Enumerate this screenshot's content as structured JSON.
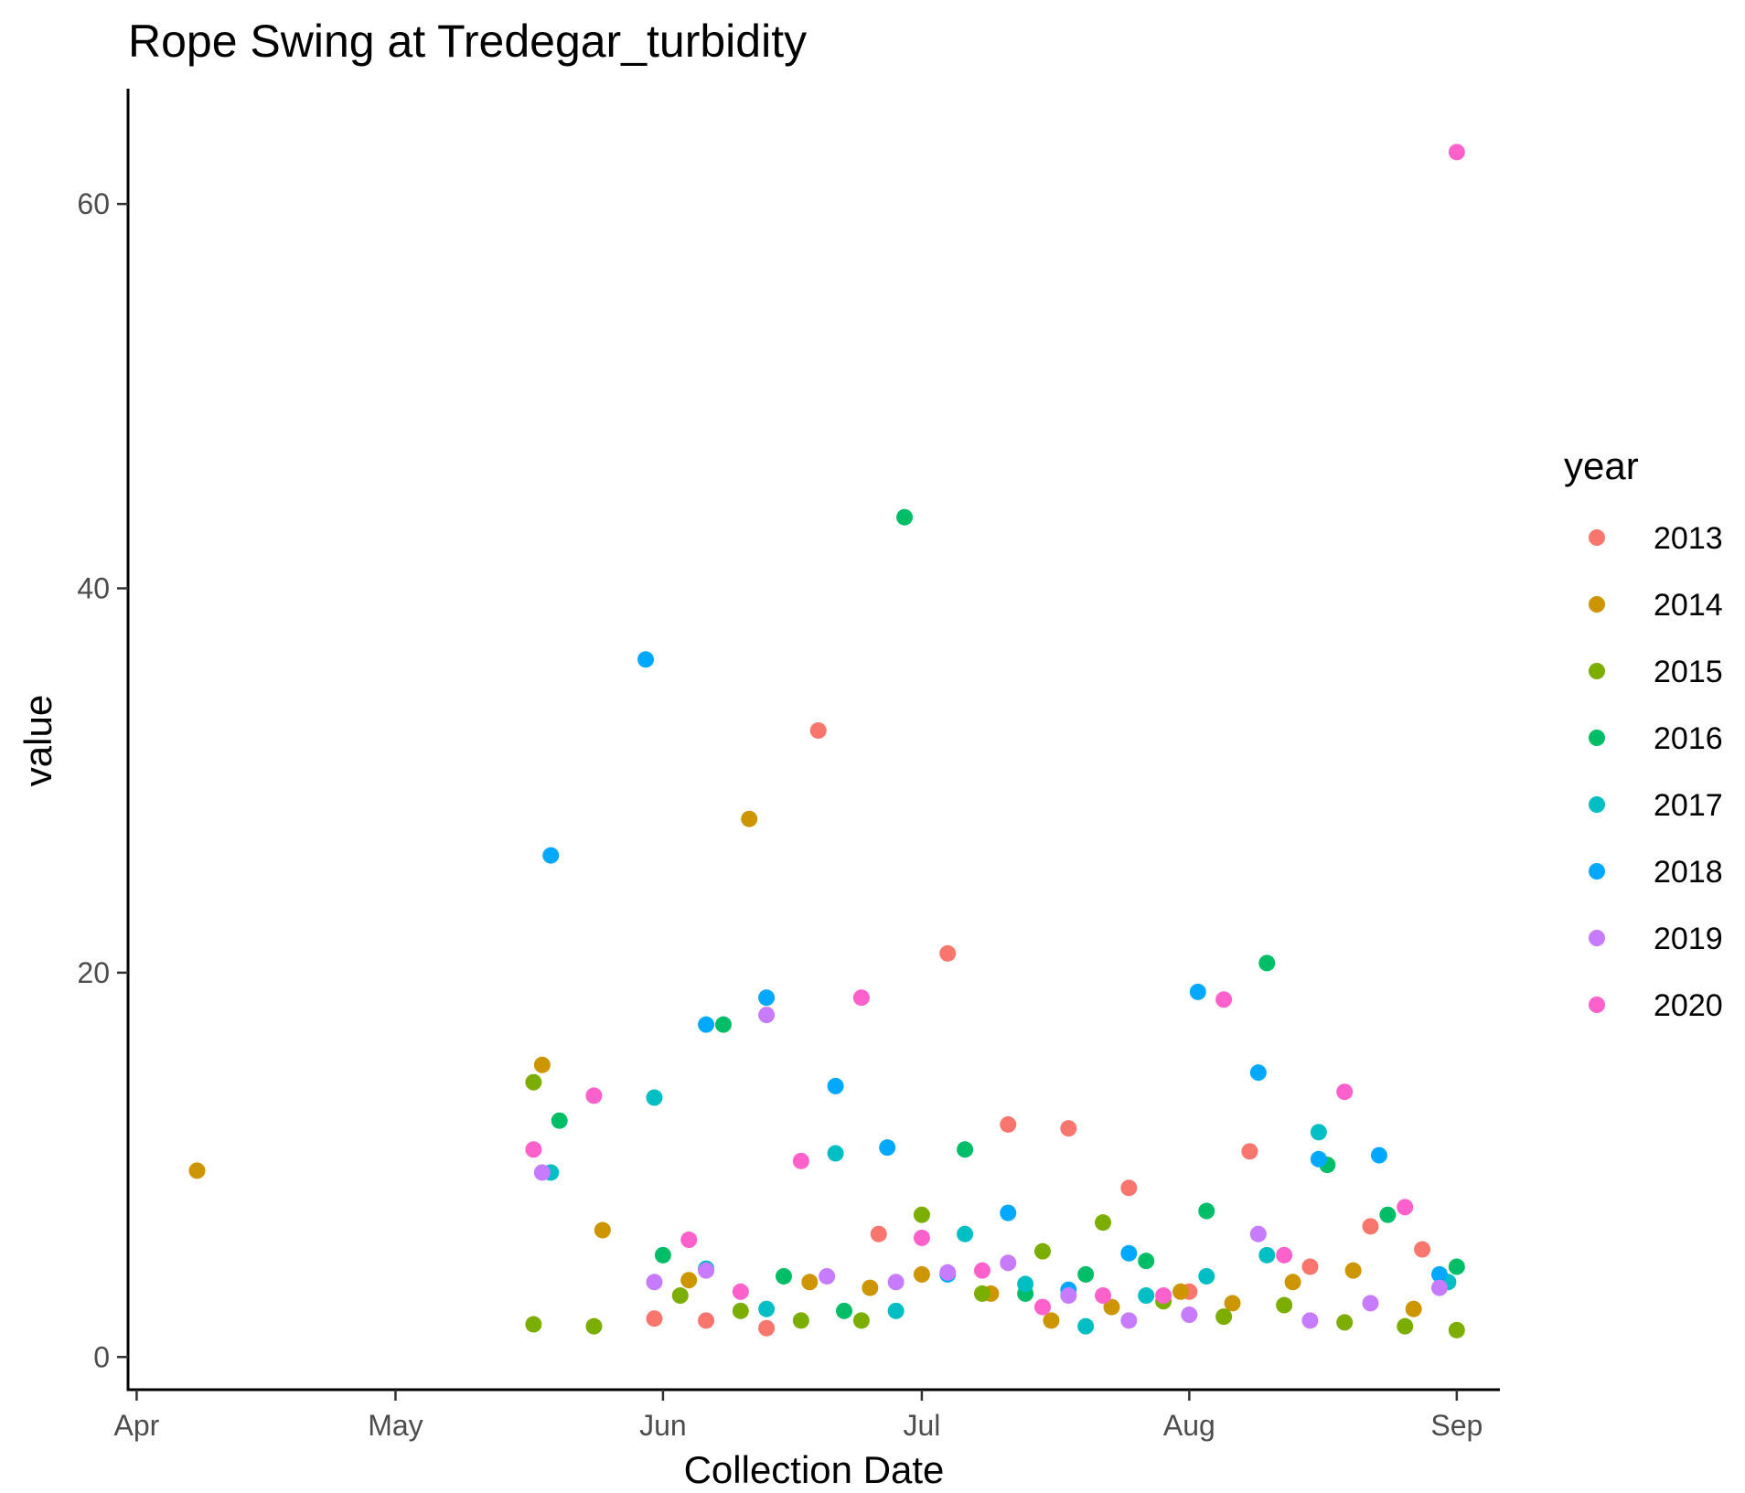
{
  "chart_data": {
    "type": "scatter",
    "title": "Rope Swing at Tredegar_turbidity",
    "xlabel": "Collection Date",
    "ylabel": "value",
    "x_axis_type": "date",
    "xlim": [
      "03-31",
      "09-06"
    ],
    "ylim": [
      -1.7,
      66
    ],
    "x_ticks": [
      {
        "date": "04-01",
        "label": "Apr"
      },
      {
        "date": "05-01",
        "label": "May"
      },
      {
        "date": "06-01",
        "label": "Jun"
      },
      {
        "date": "07-01",
        "label": "Jul"
      },
      {
        "date": "08-01",
        "label": "Aug"
      },
      {
        "date": "09-01",
        "label": "Sep"
      }
    ],
    "y_ticks": [
      0,
      20,
      40,
      60
    ],
    "legend": {
      "title": "year",
      "placement": "right"
    },
    "grid": false,
    "series": [
      {
        "name": "2013",
        "color": "#F8766D",
        "points": [
          [
            "05-31",
            2.0
          ],
          [
            "06-06",
            1.9
          ],
          [
            "06-13",
            1.5
          ],
          [
            "06-19",
            32.6
          ],
          [
            "06-26",
            6.4
          ],
          [
            "07-04",
            21.0
          ],
          [
            "07-11",
            12.1
          ],
          [
            "07-18",
            11.9
          ],
          [
            "07-25",
            8.8
          ],
          [
            "08-01",
            3.4
          ],
          [
            "08-08",
            10.7
          ],
          [
            "08-15",
            4.7
          ],
          [
            "08-22",
            6.8
          ],
          [
            "08-28",
            5.6
          ]
        ]
      },
      {
        "name": "2014",
        "color": "#CD9600",
        "points": [
          [
            "04-08",
            9.7
          ],
          [
            "05-18",
            15.2
          ],
          [
            "05-25",
            6.6
          ],
          [
            "06-04",
            4.0
          ],
          [
            "06-11",
            28.0
          ],
          [
            "06-18",
            3.9
          ],
          [
            "06-25",
            3.6
          ],
          [
            "07-01",
            4.3
          ],
          [
            "07-09",
            3.3
          ],
          [
            "07-16",
            1.9
          ],
          [
            "07-23",
            2.6
          ],
          [
            "07-31",
            3.4
          ],
          [
            "08-06",
            2.8
          ],
          [
            "08-13",
            3.9
          ],
          [
            "08-20",
            4.5
          ],
          [
            "08-27",
            2.5
          ]
        ]
      },
      {
        "name": "2015",
        "color": "#7CAE00",
        "points": [
          [
            "05-17",
            14.3
          ],
          [
            "05-17",
            1.7
          ],
          [
            "05-24",
            1.6
          ],
          [
            "06-03",
            3.2
          ],
          [
            "06-10",
            2.4
          ],
          [
            "06-17",
            1.9
          ],
          [
            "06-24",
            1.9
          ],
          [
            "07-01",
            7.4
          ],
          [
            "07-08",
            3.3
          ],
          [
            "07-15",
            5.5
          ],
          [
            "07-22",
            7.0
          ],
          [
            "07-29",
            2.9
          ],
          [
            "08-05",
            2.1
          ],
          [
            "08-12",
            2.7
          ],
          [
            "08-19",
            1.8
          ],
          [
            "08-26",
            1.6
          ],
          [
            "09-01",
            1.4
          ]
        ]
      },
      {
        "name": "2016",
        "color": "#00BE67",
        "points": [
          [
            "05-20",
            12.3
          ],
          [
            "06-01",
            5.3
          ],
          [
            "06-08",
            17.3
          ],
          [
            "06-15",
            4.2
          ],
          [
            "06-22",
            2.4
          ],
          [
            "06-29",
            43.7
          ],
          [
            "07-06",
            10.8
          ],
          [
            "07-13",
            3.3
          ],
          [
            "07-20",
            4.3
          ],
          [
            "07-27",
            5.0
          ],
          [
            "08-03",
            7.6
          ],
          [
            "08-10",
            20.5
          ],
          [
            "08-17",
            10.0
          ],
          [
            "08-24",
            7.4
          ],
          [
            "09-01",
            4.7
          ]
        ]
      },
      {
        "name": "2017",
        "color": "#00BFC4",
        "points": [
          [
            "05-19",
            9.6
          ],
          [
            "05-31",
            13.5
          ],
          [
            "06-06",
            4.6
          ],
          [
            "06-13",
            2.5
          ],
          [
            "06-21",
            10.6
          ],
          [
            "06-28",
            2.4
          ],
          [
            "07-06",
            6.4
          ],
          [
            "07-13",
            3.8
          ],
          [
            "07-20",
            1.6
          ],
          [
            "07-27",
            3.2
          ],
          [
            "08-03",
            4.2
          ],
          [
            "08-10",
            5.3
          ],
          [
            "08-16",
            11.7
          ],
          [
            "08-31",
            3.9
          ]
        ]
      },
      {
        "name": "2018",
        "color": "#00A9FF",
        "points": [
          [
            "05-19",
            26.1
          ],
          [
            "05-30",
            36.3
          ],
          [
            "06-06",
            17.3
          ],
          [
            "06-13",
            18.7
          ],
          [
            "06-21",
            14.1
          ],
          [
            "06-27",
            10.9
          ],
          [
            "07-04",
            4.3
          ],
          [
            "07-11",
            7.5
          ],
          [
            "07-18",
            3.5
          ],
          [
            "07-25",
            5.4
          ],
          [
            "08-02",
            19.0
          ],
          [
            "08-09",
            14.8
          ],
          [
            "08-16",
            10.3
          ],
          [
            "08-23",
            10.5
          ],
          [
            "08-30",
            4.3
          ]
        ]
      },
      {
        "name": "2019",
        "color": "#C77CFF",
        "points": [
          [
            "05-18",
            9.6
          ],
          [
            "05-31",
            3.9
          ],
          [
            "06-06",
            4.5
          ],
          [
            "06-13",
            17.8
          ],
          [
            "06-20",
            4.2
          ],
          [
            "06-28",
            3.9
          ],
          [
            "07-04",
            4.4
          ],
          [
            "07-11",
            4.9
          ],
          [
            "07-18",
            3.2
          ],
          [
            "07-25",
            1.9
          ],
          [
            "08-01",
            2.2
          ],
          [
            "08-09",
            6.4
          ],
          [
            "08-15",
            1.9
          ],
          [
            "08-22",
            2.8
          ],
          [
            "08-30",
            3.6
          ]
        ]
      },
      {
        "name": "2020",
        "color": "#FF61CC",
        "points": [
          [
            "05-17",
            10.8
          ],
          [
            "05-24",
            13.6
          ],
          [
            "06-04",
            6.1
          ],
          [
            "06-10",
            3.4
          ],
          [
            "06-17",
            10.2
          ],
          [
            "06-24",
            18.7
          ],
          [
            "07-01",
            6.2
          ],
          [
            "07-08",
            4.5
          ],
          [
            "07-15",
            2.6
          ],
          [
            "07-22",
            3.2
          ],
          [
            "07-29",
            3.2
          ],
          [
            "08-05",
            18.6
          ],
          [
            "08-12",
            5.3
          ],
          [
            "08-19",
            13.8
          ],
          [
            "08-26",
            7.8
          ],
          [
            "09-01",
            62.7
          ]
        ]
      }
    ]
  }
}
